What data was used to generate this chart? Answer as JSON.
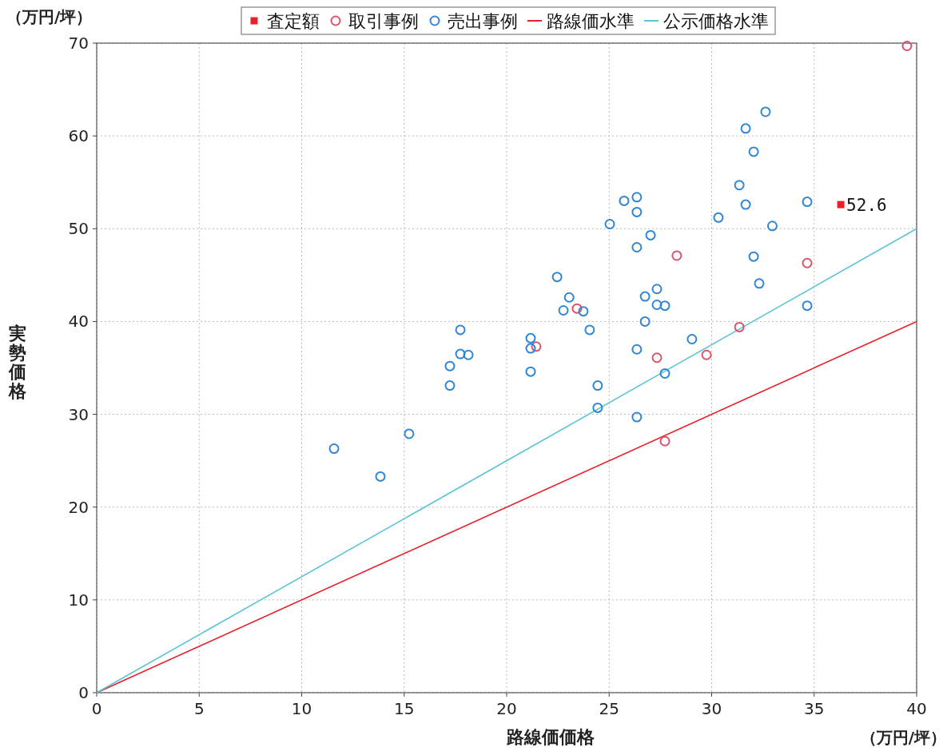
{
  "chart_data": {
    "type": "scatter",
    "xlabel": "路線価価格",
    "ylabel": "実勢価格",
    "annotations": [
      "（万円/坪）",
      "（万円/坪）"
    ],
    "xlim": [
      0,
      40
    ],
    "xticks": [
      0,
      5,
      10,
      15,
      20,
      25,
      30,
      35,
      40
    ],
    "ylim": [
      0,
      70
    ],
    "yticks": [
      0,
      10,
      20,
      30,
      40,
      50,
      60,
      70
    ],
    "grid": true,
    "legend": "top",
    "series": [
      {
        "name": "査定額",
        "marker": "square",
        "color": "#e8202a",
        "x": [
          36.3
        ],
        "values": [
          52.6
        ],
        "value_labels": [
          "52.6"
        ]
      },
      {
        "name": "取引事例",
        "marker": "circle",
        "color": "#d9546a",
        "x": [
          39.53,
          28.3,
          23.43,
          21.44,
          27.33,
          29.75,
          31.35,
          34.66,
          27.72
        ],
        "values": [
          69.7,
          47.1,
          41.4,
          37.3,
          36.1,
          36.4,
          39.4,
          46.3,
          27.1
        ]
      },
      {
        "name": "売出事例",
        "marker": "circle",
        "color": "#2f86d6",
        "x": [
          11.58,
          13.84,
          15.24,
          17.23,
          17.23,
          17.74,
          17.74,
          18.13,
          21.17,
          21.17,
          21.17,
          22.46,
          22.77,
          23.05,
          23.74,
          24.05,
          24.44,
          24.44,
          25.03,
          25.73,
          26.35,
          26.35,
          26.35,
          26.35,
          26.35,
          27.02,
          26.75,
          27.33,
          27.33,
          27.72,
          26.75,
          27.72,
          29.04,
          30.33,
          31.35,
          31.66,
          31.66,
          32.05,
          32.05,
          32.32,
          32.63,
          32.96,
          34.66,
          34.66
        ],
        "values": [
          26.3,
          23.3,
          27.9,
          35.2,
          33.1,
          39.1,
          36.5,
          36.4,
          38.2,
          37.1,
          34.6,
          44.8,
          41.2,
          42.6,
          41.1,
          39.1,
          33.1,
          30.7,
          50.5,
          53.0,
          53.4,
          51.8,
          48.0,
          37.0,
          29.7,
          49.3,
          42.7,
          43.5,
          41.8,
          41.7,
          40.0,
          34.4,
          38.1,
          51.2,
          54.7,
          60.8,
          52.6,
          58.3,
          47.0,
          44.1,
          62.6,
          50.3,
          52.9,
          41.7
        ]
      },
      {
        "name": "路線価水準",
        "type": "line",
        "color": "#e8202a",
        "x": [
          0,
          40
        ],
        "values": [
          0,
          40
        ]
      },
      {
        "name": "公示価格水準",
        "type": "line",
        "color": "#5bc3d6",
        "x": [
          0,
          40
        ],
        "values": [
          0,
          50
        ]
      }
    ]
  }
}
